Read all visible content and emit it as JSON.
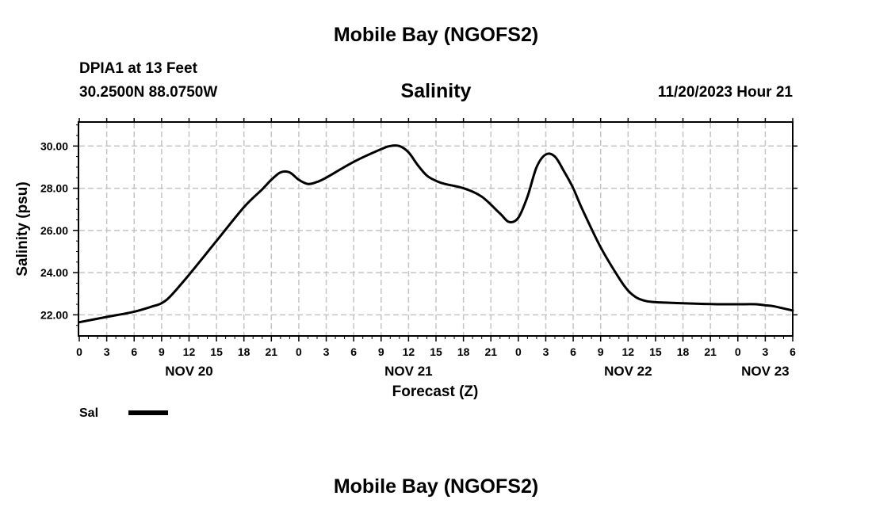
{
  "page": {
    "title": "Mobile Bay (NGOFS2)",
    "footer_title": "Mobile Bay (NGOFS2)",
    "station_name": "DPIA1 at 13 Feet",
    "station_coords": "30.2500N  88.0750W",
    "timestamp": "11/20/2023 Hour 21"
  },
  "chart_data": {
    "type": "line",
    "title": "Salinity",
    "xlabel": "Forecast (Z)",
    "ylabel": "Salinity (psu)",
    "xlim": [
      0,
      78
    ],
    "ylim": [
      21,
      31.1
    ],
    "grid": true,
    "x_ticks": [
      {
        "x": 0,
        "label": "0"
      },
      {
        "x": 3,
        "label": "3"
      },
      {
        "x": 6,
        "label": "6"
      },
      {
        "x": 9,
        "label": "9"
      },
      {
        "x": 12,
        "label": "12"
      },
      {
        "x": 15,
        "label": "15"
      },
      {
        "x": 18,
        "label": "18"
      },
      {
        "x": 21,
        "label": "21"
      },
      {
        "x": 24,
        "label": "0"
      },
      {
        "x": 27,
        "label": "3"
      },
      {
        "x": 30,
        "label": "6"
      },
      {
        "x": 33,
        "label": "9"
      },
      {
        "x": 36,
        "label": "12"
      },
      {
        "x": 39,
        "label": "15"
      },
      {
        "x": 42,
        "label": "18"
      },
      {
        "x": 45,
        "label": "21"
      },
      {
        "x": 48,
        "label": "0"
      },
      {
        "x": 51,
        "label": "3"
      },
      {
        "x": 54,
        "label": "6"
      },
      {
        "x": 57,
        "label": "9"
      },
      {
        "x": 60,
        "label": "12"
      },
      {
        "x": 63,
        "label": "15"
      },
      {
        "x": 66,
        "label": "18"
      },
      {
        "x": 69,
        "label": "21"
      },
      {
        "x": 72,
        "label": "0"
      },
      {
        "x": 75,
        "label": "3"
      },
      {
        "x": 78,
        "label": "6"
      }
    ],
    "day_labels": [
      {
        "x": 12,
        "label": "NOV 20"
      },
      {
        "x": 36,
        "label": "NOV 21"
      },
      {
        "x": 60,
        "label": "NOV 22"
      },
      {
        "x": 75,
        "label": "NOV 23"
      }
    ],
    "y_ticks": [
      22,
      24,
      26,
      28,
      30
    ],
    "y_tick_labels": [
      "22.00",
      "24.00",
      "26.00",
      "28.00",
      "30.00"
    ],
    "series": [
      {
        "name": "Sal",
        "color": "#000000",
        "x": [
          0,
          3,
          6,
          8,
          9,
          10,
          12,
          15,
          18,
          20,
          21,
          22,
          23,
          24,
          25,
          26,
          27,
          30,
          33,
          34,
          35,
          36,
          37,
          38,
          39,
          40,
          42,
          44,
          46,
          47,
          48,
          49,
          50,
          51,
          52,
          53,
          54,
          55,
          57,
          59,
          60,
          61,
          62,
          63,
          64,
          66,
          68,
          70,
          72,
          74,
          75,
          76,
          78
        ],
        "y": [
          21.65,
          21.9,
          22.15,
          22.4,
          22.55,
          22.9,
          23.9,
          25.5,
          27.1,
          27.95,
          28.4,
          28.75,
          28.75,
          28.4,
          28.2,
          28.3,
          28.5,
          29.25,
          29.85,
          30.0,
          30.0,
          29.7,
          29.1,
          28.6,
          28.35,
          28.2,
          28.0,
          27.6,
          26.8,
          26.4,
          26.6,
          27.6,
          29.0,
          29.6,
          29.5,
          28.8,
          28.0,
          27.0,
          25.2,
          23.75,
          23.15,
          22.8,
          22.65,
          22.6,
          22.58,
          22.55,
          22.52,
          22.5,
          22.5,
          22.5,
          22.45,
          22.4,
          22.2
        ]
      }
    ],
    "legend": {
      "label": "Sal",
      "position": "bottom-left"
    }
  }
}
